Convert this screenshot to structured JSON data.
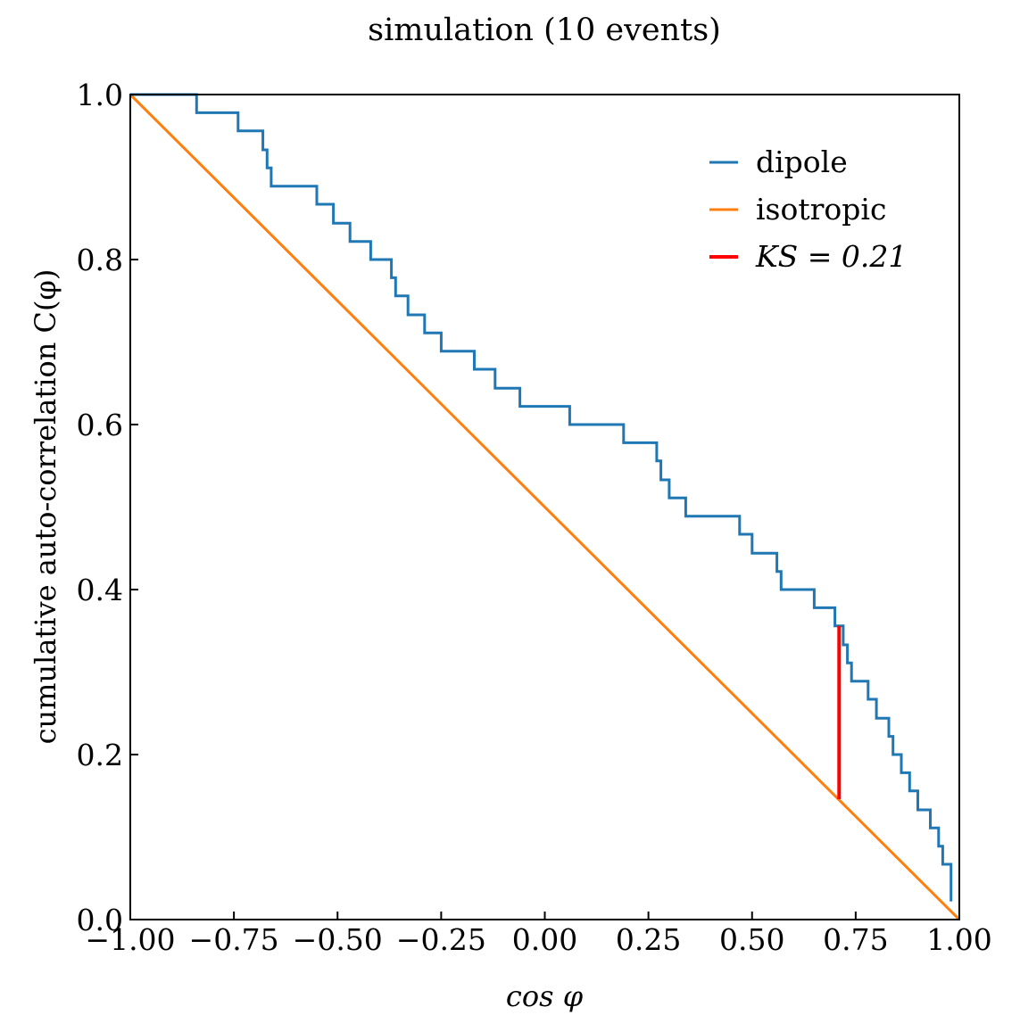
{
  "chart_data": {
    "type": "line",
    "title": "simulation (10 events)",
    "xlabel": "cos φ",
    "ylabel": "cumulative auto-correlation C(φ)",
    "xlim": [
      -1.0,
      1.0
    ],
    "ylim": [
      0.0,
      1.0
    ],
    "xticks": [
      -1.0,
      -0.75,
      -0.5,
      -0.25,
      0.0,
      0.25,
      0.5,
      0.75,
      1.0
    ],
    "xtick_labels": [
      "−1.00",
      "−0.75",
      "−0.50",
      "−0.25",
      "0.00",
      "0.25",
      "0.50",
      "0.75",
      "1.00"
    ],
    "yticks": [
      0.0,
      0.2,
      0.4,
      0.6,
      0.8,
      1.0
    ],
    "ytick_labels": [
      "0.0",
      "0.2",
      "0.4",
      "0.6",
      "0.8",
      "1.0"
    ],
    "grid": false,
    "legend_position": "top-right",
    "series": [
      {
        "name": "dipole",
        "color": "#1f77b4",
        "kind": "step",
        "x": [
          -1.0,
          -0.84,
          -0.84,
          -0.74,
          -0.74,
          -0.68,
          -0.68,
          -0.67,
          -0.67,
          -0.66,
          -0.66,
          -0.65,
          -0.65,
          -0.55,
          -0.55,
          -0.51,
          -0.51,
          -0.47,
          -0.47,
          -0.42,
          -0.42,
          -0.37,
          -0.37,
          -0.36,
          -0.36,
          -0.33,
          -0.33,
          -0.29,
          -0.29,
          -0.25,
          -0.25,
          -0.17,
          -0.17,
          -0.12,
          -0.12,
          -0.06,
          -0.06,
          0.06,
          0.06,
          0.19,
          0.19,
          0.27,
          0.27,
          0.28,
          0.28,
          0.3,
          0.3,
          0.34,
          0.34,
          0.47,
          0.47,
          0.5,
          0.5,
          0.56,
          0.56,
          0.57,
          0.57,
          0.65,
          0.65,
          0.7,
          0.7,
          0.72,
          0.72,
          0.73,
          0.73,
          0.74,
          0.74,
          0.78,
          0.78,
          0.8,
          0.8,
          0.83,
          0.83,
          0.84,
          0.84,
          0.86,
          0.86,
          0.88,
          0.88,
          0.9,
          0.9,
          0.93,
          0.93,
          0.95,
          0.95,
          0.96,
          0.96,
          0.98,
          0.98
        ],
        "y": [
          1.0,
          1.0,
          0.978,
          0.978,
          0.956,
          0.956,
          0.933,
          0.933,
          0.911,
          0.911,
          0.889,
          0.889,
          0.889,
          0.889,
          0.867,
          0.867,
          0.844,
          0.844,
          0.822,
          0.822,
          0.8,
          0.8,
          0.778,
          0.778,
          0.756,
          0.756,
          0.733,
          0.733,
          0.711,
          0.711,
          0.689,
          0.689,
          0.667,
          0.667,
          0.644,
          0.644,
          0.622,
          0.622,
          0.6,
          0.6,
          0.578,
          0.578,
          0.556,
          0.556,
          0.533,
          0.533,
          0.511,
          0.511,
          0.489,
          0.489,
          0.467,
          0.467,
          0.444,
          0.444,
          0.422,
          0.422,
          0.4,
          0.4,
          0.378,
          0.378,
          0.356,
          0.356,
          0.333,
          0.333,
          0.311,
          0.311,
          0.289,
          0.289,
          0.267,
          0.267,
          0.244,
          0.244,
          0.222,
          0.222,
          0.2,
          0.2,
          0.178,
          0.178,
          0.156,
          0.156,
          0.133,
          0.133,
          0.111,
          0.111,
          0.089,
          0.089,
          0.067,
          0.067,
          0.022
        ]
      },
      {
        "name": "isotropic",
        "color": "#ff7f0e",
        "kind": "line",
        "x": [
          -1.0,
          1.0
        ],
        "y": [
          1.0,
          0.0
        ]
      },
      {
        "name": "KS = 0.21",
        "color": "#ff0000",
        "kind": "segment",
        "x": [
          0.71,
          0.71
        ],
        "y": [
          0.146,
          0.356
        ]
      }
    ]
  }
}
